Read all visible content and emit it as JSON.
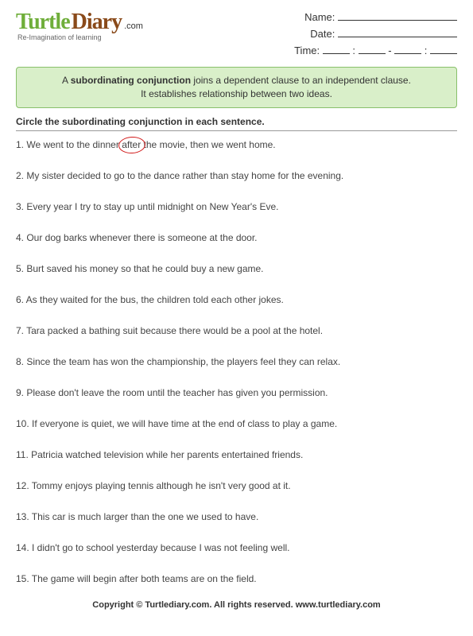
{
  "logo": {
    "word1": "Turtle",
    "word2": "Diary",
    "dotcom": ".com",
    "tagline": "Re-Imagination of learning"
  },
  "meta": {
    "name_label": "Name:",
    "date_label": "Date:",
    "time_label": "Time:"
  },
  "intro": {
    "line1_pre": "A ",
    "line1_bold": "subordinating conjunction",
    "line1_post": " joins a dependent clause to an independent clause.",
    "line2": "It establishes relationship between two ideas."
  },
  "instructions": "Circle the subordinating conjunction in each sentence.",
  "q1": {
    "pre": "1. We went to the dinner ",
    "circled": "after",
    "post": " the movie, then we went home."
  },
  "questions": [
    "2. My sister decided to go to the dance rather than stay home for the evening.",
    "3. Every year I try to stay up until midnight on New Year's Eve.",
    "4. Our dog barks whenever there is someone at the door.",
    "5. Burt saved his money so that he could buy a new game.",
    "6. As they waited for the bus, the children told each other jokes.",
    "7. Tara packed a bathing suit because there would be a pool at the hotel.",
    "8. Since the team has won the championship, the players feel they can relax.",
    "9. Please don't leave the room until the teacher has given you permission.",
    "10. If everyone is quiet, we will have time at the end of class to play a game.",
    "11. Patricia watched television while her parents entertained friends.",
    "12. Tommy enjoys playing tennis although he isn't very good at it.",
    "13. This car is much larger than the one we used to have.",
    "14. I didn't go to school yesterday because I was not feeling well.",
    "15. The game will begin after both teams are on the field."
  ],
  "footer": "Copyright © Turtlediary.com. All rights reserved. www.turtlediary.com",
  "colors": {
    "green": "#6fae3a",
    "brown": "#8a4a1a",
    "box_bg": "#d9efc9",
    "box_border": "#88c06a",
    "circle": "#d11a1a",
    "text": "#333333"
  }
}
